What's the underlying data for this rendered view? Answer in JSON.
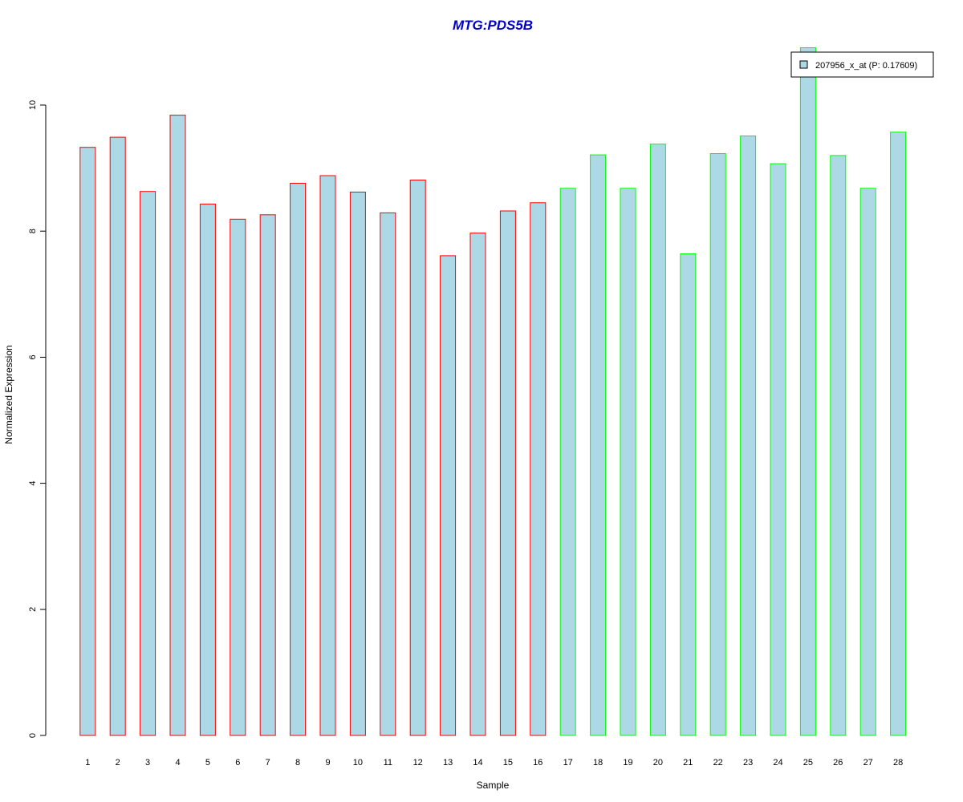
{
  "chart_data": {
    "type": "bar",
    "title": "MTG:PDS5B",
    "xlabel": "Sample",
    "ylabel": "Normalized Expression",
    "categories": [
      "1",
      "2",
      "3",
      "4",
      "5",
      "6",
      "7",
      "8",
      "9",
      "10",
      "11",
      "12",
      "13",
      "14",
      "15",
      "16",
      "17",
      "18",
      "19",
      "20",
      "21",
      "22",
      "23",
      "24",
      "25",
      "26",
      "27",
      "28"
    ],
    "series": [
      {
        "name": "207956_x_at (P: 0.17609)",
        "values": [
          9.33,
          9.49,
          8.63,
          9.84,
          8.43,
          8.19,
          8.26,
          8.76,
          8.88,
          8.62,
          8.29,
          8.81,
          7.61,
          7.97,
          8.32,
          8.45,
          8.68,
          9.21,
          8.68,
          9.38,
          7.64,
          9.23,
          9.51,
          9.07,
          10.91,
          9.2,
          8.68,
          9.57
        ]
      }
    ],
    "groups": [
      "red",
      "red",
      "red",
      "red",
      "red",
      "red",
      "red",
      "red",
      "red",
      "red",
      "red",
      "red",
      "red",
      "red",
      "red",
      "red",
      "green",
      "green",
      "green",
      "green",
      "green",
      "green",
      "green",
      "green",
      "green",
      "green",
      "green",
      "green"
    ],
    "yticks": [
      0,
      2,
      4,
      6,
      8,
      10
    ],
    "ylim": [
      0,
      11
    ],
    "legend_position": "top-right",
    "grid": false,
    "colors": {
      "bar_fill": "#add8e6",
      "group_red": "#ff0000",
      "group_green": "#00ff00",
      "title": "#0000cc",
      "axis": "#000000"
    }
  }
}
